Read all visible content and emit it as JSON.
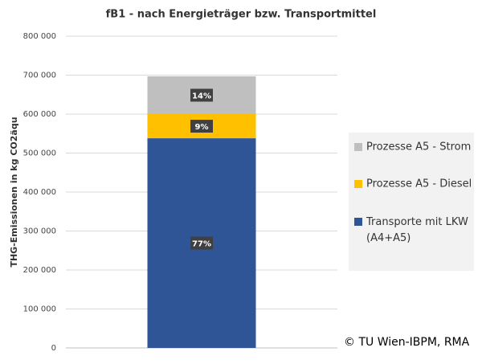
{
  "chart_data": {
    "type": "stacked_bar",
    "title": "fB1 - nach Energieträger bzw. Transportmittel",
    "y_label": "THG-Emissionen in kg CO2äqu",
    "categories": [
      null
    ],
    "series": [
      {
        "name": "Transporte mit LKW (A4+A5)",
        "color": "#2f5597",
        "values": [
          538000
        ],
        "value_labels": [
          "77%"
        ]
      },
      {
        "name": "Prozesse A5 - Diesel",
        "color": "#ffc000",
        "values": [
          62000
        ],
        "value_labels": [
          "9%"
        ]
      },
      {
        "name": "Prozesse A5 - Strom",
        "color": "#bfbfbf",
        "values": [
          97000
        ],
        "value_labels": [
          "14%"
        ]
      }
    ],
    "ylim": [
      0,
      800000
    ],
    "yticks": [
      0,
      {
        "value": 100000,
        "label": "100 000"
      },
      {
        "value": 200000,
        "label": "200 000"
      },
      {
        "value": 300000,
        "label": "300 000"
      },
      {
        "value": 400000,
        "label": "400 000"
      },
      {
        "value": 500000,
        "label": "500 000"
      },
      {
        "value": 600000,
        "label": "600 000"
      },
      {
        "value": 700000,
        "label": "700 000"
      },
      {
        "value": 800000,
        "label": "800 000"
      }
    ],
    "grid": true,
    "legend": "right",
    "annotation": "© TU Wien-IBPM, RMA"
  }
}
